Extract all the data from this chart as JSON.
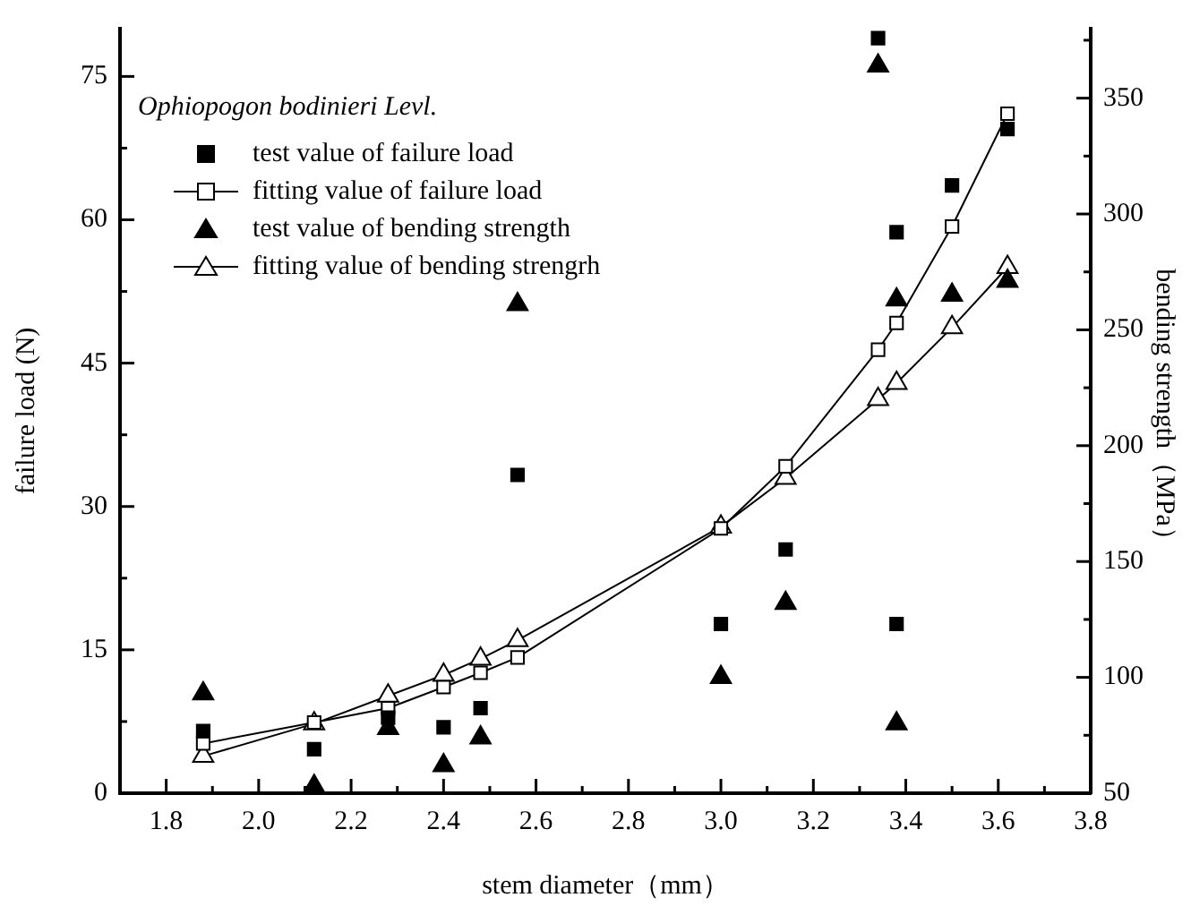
{
  "chart_data": {
    "type": "scatter",
    "xlabel": "stem diameter（mm）",
    "ylabel": "failure load (N)",
    "y2label": "bending strength（MPa）",
    "annotations": [
      "Ophiopogon bodinieri Levl."
    ],
    "legend": "top left",
    "grid": false,
    "xlim": [
      1.7,
      3.8
    ],
    "xticks": [
      {
        "value": 1.8,
        "label": "1.8"
      },
      {
        "value": 1.9,
        "label": null
      },
      {
        "value": 2.0,
        "label": "2.0"
      },
      {
        "value": 2.1,
        "label": null
      },
      {
        "value": 2.2,
        "label": "2.2"
      },
      {
        "value": 2.3,
        "label": null
      },
      {
        "value": 2.4,
        "label": "2.4"
      },
      {
        "value": 2.5,
        "label": null
      },
      {
        "value": 2.6,
        "label": "2.6"
      },
      {
        "value": 2.7,
        "label": null
      },
      {
        "value": 2.8,
        "label": "2.8"
      },
      {
        "value": 2.9,
        "label": null
      },
      {
        "value": 3.0,
        "label": "3.0"
      },
      {
        "value": 3.1,
        "label": null
      },
      {
        "value": 3.2,
        "label": "3.2"
      },
      {
        "value": 3.3,
        "label": null
      },
      {
        "value": 3.4,
        "label": "3.4"
      },
      {
        "value": 3.5,
        "label": null
      },
      {
        "value": 3.6,
        "label": "3.6"
      },
      {
        "value": 3.7,
        "label": null
      },
      {
        "value": 3.8,
        "label": "3.8"
      }
    ],
    "ylim": [
      0,
      80
    ],
    "yticks": [
      0,
      {
        "value": 7.5,
        "label": null
      },
      15,
      {
        "value": 22.5,
        "label": null
      },
      30,
      {
        "value": 37.5,
        "label": null
      },
      45,
      {
        "value": 52.5,
        "label": null
      },
      60,
      {
        "value": 67.5,
        "label": null
      },
      75
    ],
    "y2lim": [
      50,
      380
    ],
    "y2ticks": [
      50,
      {
        "value": 75,
        "label": null
      },
      100,
      {
        "value": 125,
        "label": null
      },
      150,
      {
        "value": 175,
        "label": null
      },
      200,
      {
        "value": 225,
        "label": null
      },
      250,
      {
        "value": 275,
        "label": null
      },
      300,
      {
        "value": 325,
        "label": null
      },
      350,
      {
        "value": 375,
        "label": null
      }
    ],
    "series": [
      {
        "name": "test value of failure load",
        "type": "scatter",
        "marker": "square",
        "color": "#000000",
        "x": [
          1.88,
          2.12,
          2.28,
          2.4,
          2.48,
          2.56,
          3.0,
          3.14,
          3.34,
          3.38,
          3.38,
          3.5,
          3.62
        ],
        "values": [
          6.5,
          4.6,
          7.9,
          6.9,
          8.9,
          33.3,
          17.7,
          25.5,
          79,
          58.7,
          17.7,
          63.6,
          69.5
        ]
      },
      {
        "name": "fitting value of failure load",
        "type": "line",
        "marker": "square",
        "color": "#000000",
        "x": [
          1.88,
          2.12,
          2.28,
          2.4,
          2.48,
          2.56,
          3.0,
          3.14,
          3.34,
          3.38,
          3.5,
          3.62
        ],
        "values": [
          5.2,
          7.4,
          8.9,
          11.1,
          12.6,
          14.2,
          27.7,
          34.2,
          46.4,
          49.2,
          59.3,
          71.1
        ]
      },
      {
        "name": "test value of bending strength",
        "type": "scatter",
        "marker": "triangle",
        "axis": "y2",
        "color": "#000000",
        "x": [
          1.88,
          2.12,
          2.28,
          2.4,
          2.48,
          2.56,
          3.0,
          3.14,
          3.34,
          3.38,
          3.38,
          3.5,
          3.62
        ],
        "values": [
          93,
          53,
          78,
          62,
          74,
          261,
          100,
          132,
          364,
          263,
          80,
          265,
          271
        ]
      },
      {
        "name": "fitting value of bending strengrh",
        "type": "line",
        "marker": "triangle",
        "axis": "y2",
        "color": "#000000",
        "x": [
          1.88,
          2.12,
          2.28,
          2.4,
          2.48,
          2.56,
          3.0,
          3.14,
          3.34,
          3.38,
          3.5,
          3.62
        ],
        "values": [
          66,
          80,
          92,
          101,
          108,
          116,
          165,
          186,
          220,
          227,
          251,
          277
        ]
      }
    ]
  }
}
